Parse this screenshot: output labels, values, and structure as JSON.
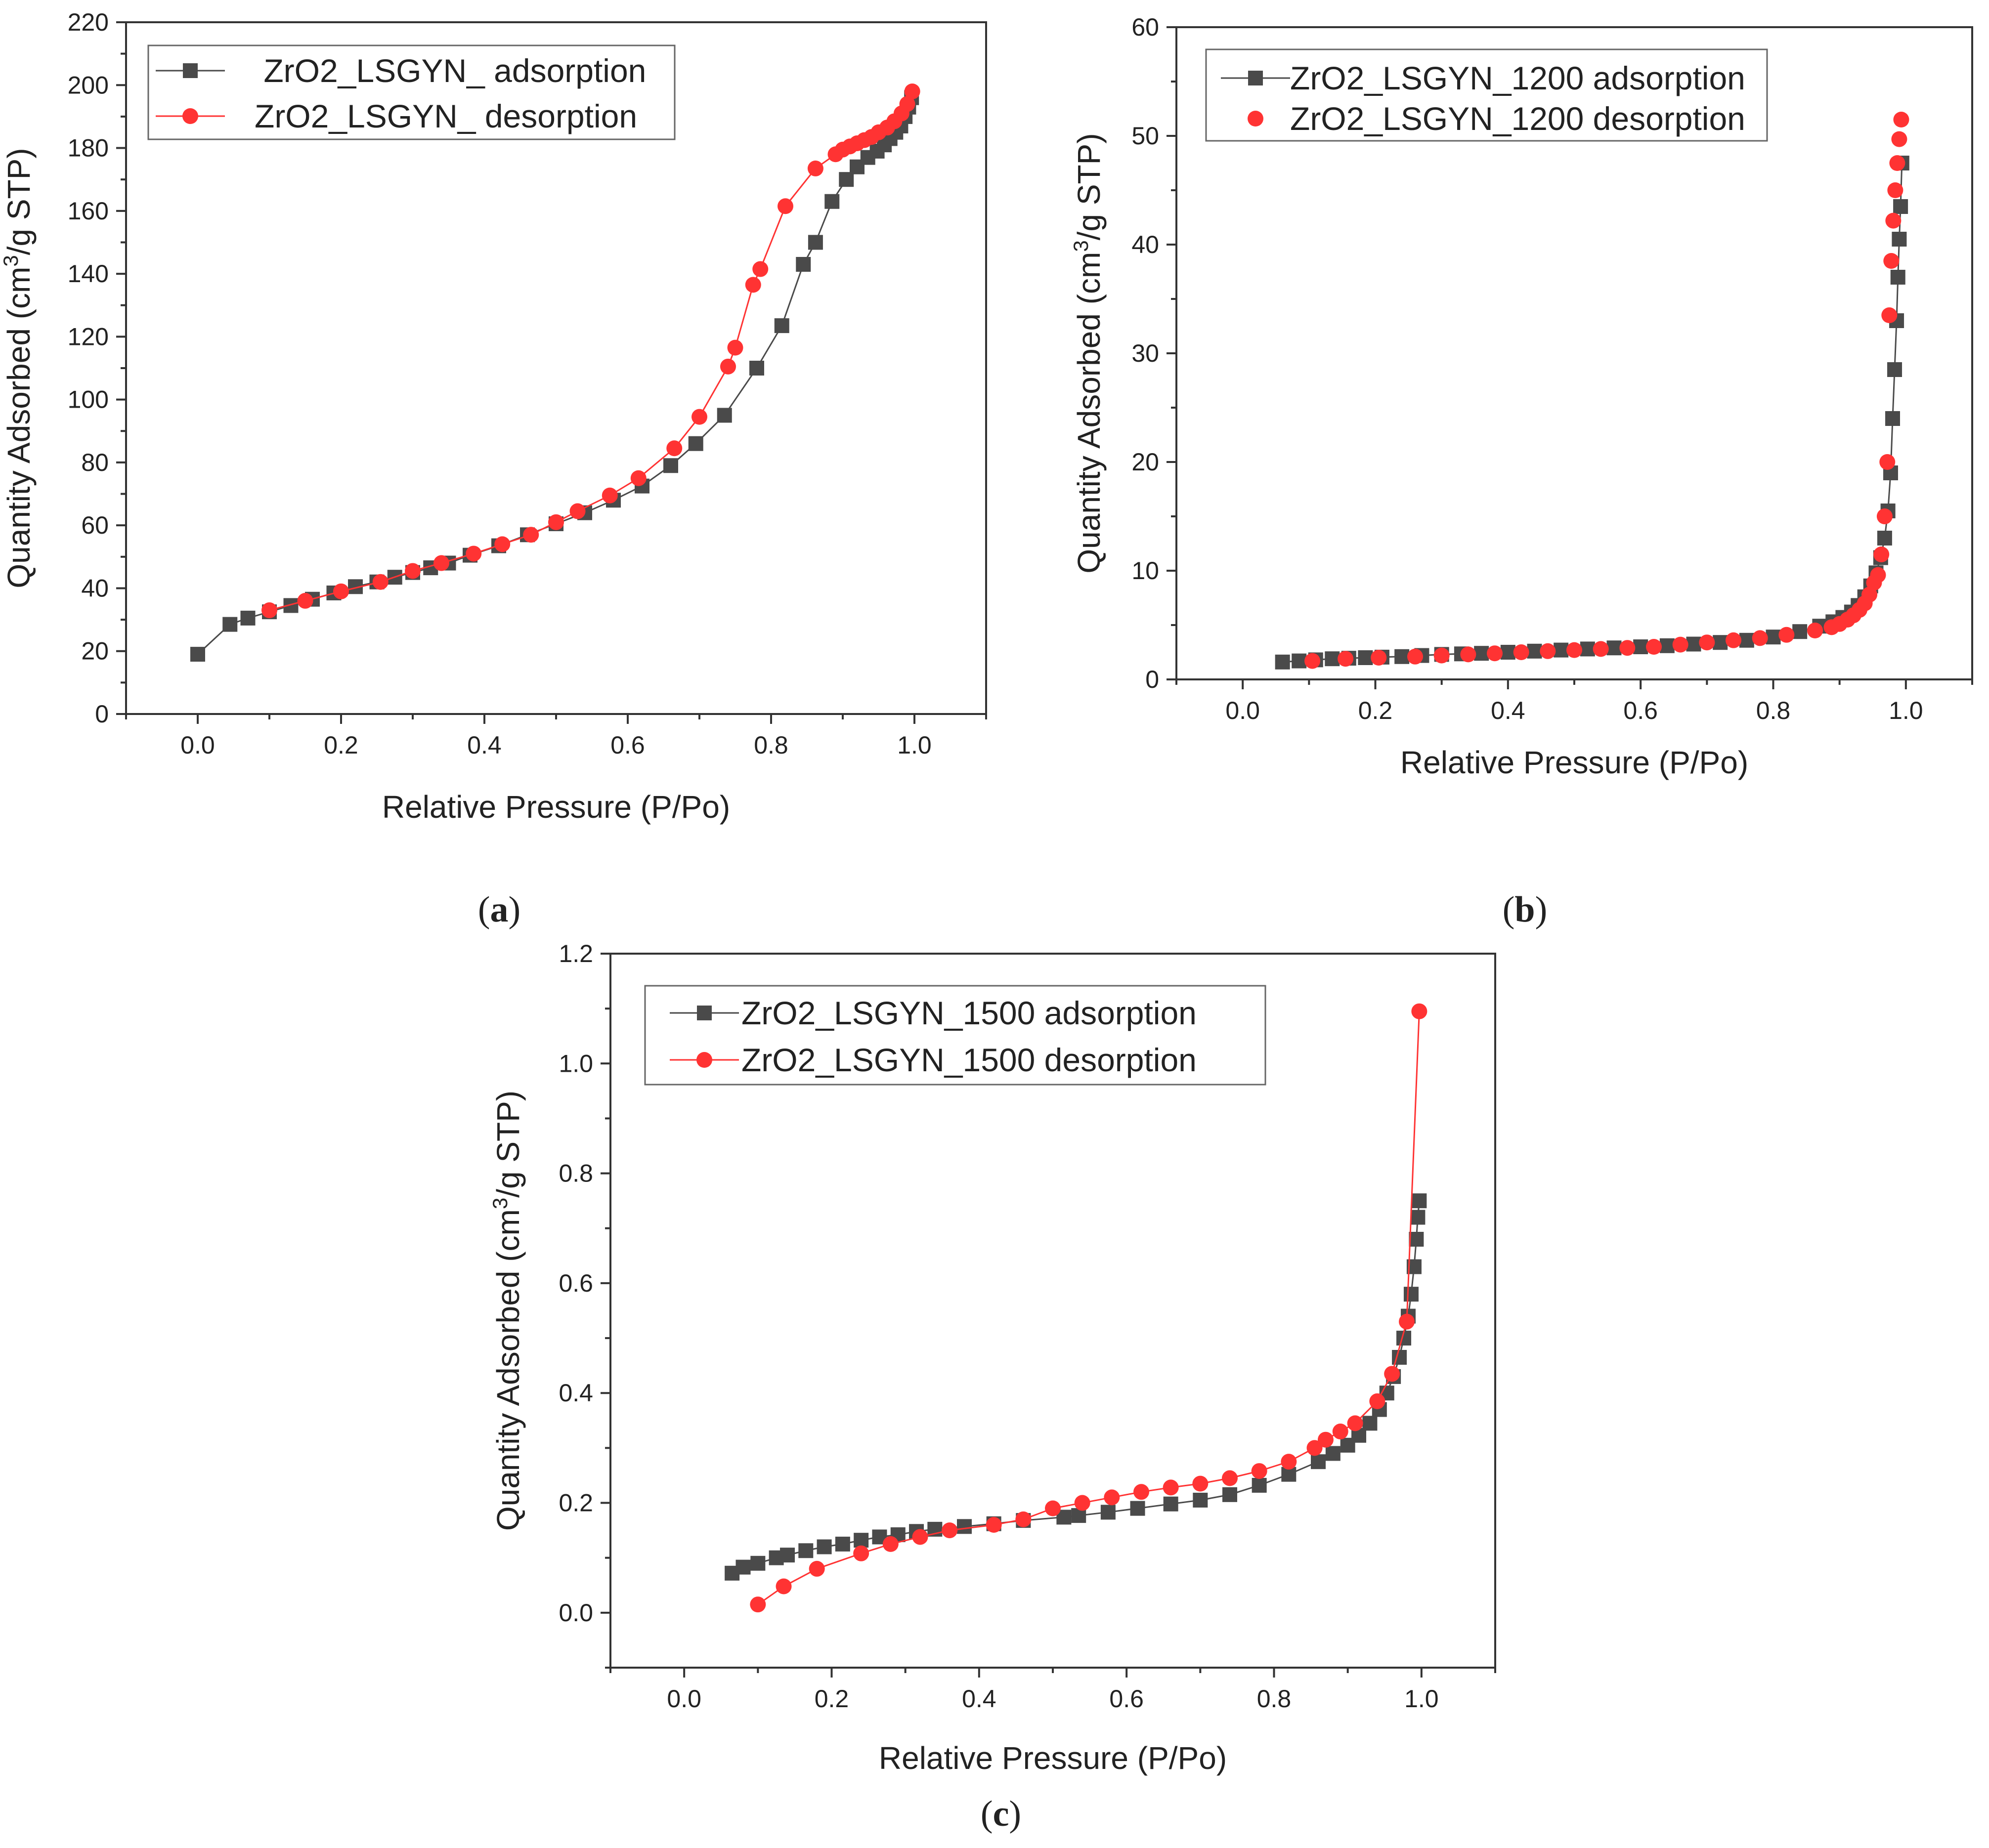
{
  "colors": {
    "adsorption": "#4a4a4a",
    "desorption": "#ff3333",
    "axis": "#333333",
    "text": "#222222"
  },
  "chart_data": [
    {
      "type": "scatter",
      "panel_label": "a",
      "xlabel": "Relative Pressure (P/Po)",
      "ylabel_main": "Quantity Adsorbed (cm",
      "ylabel_sup": "3",
      "ylabel_end": "/g STP)",
      "xlim": [
        -0.1,
        1.1
      ],
      "ylim": [
        0,
        220
      ],
      "x_ticks": [
        0.0,
        0.2,
        0.4,
        0.6,
        0.8,
        1.0
      ],
      "x_tick_labels": [
        "0.0",
        "0.2",
        "0.4",
        "0.6",
        "0.8",
        "1.0"
      ],
      "y_ticks": [
        0,
        20,
        40,
        60,
        80,
        100,
        120,
        140,
        160,
        180,
        200,
        220
      ],
      "y_tick_labels": [
        "0",
        "20",
        "40",
        "60",
        "80",
        "100",
        "120",
        "140",
        "160",
        "180",
        "200",
        "220"
      ],
      "legend_position": "top-left",
      "grid": false,
      "series": [
        {
          "name": " ZrO2_LSGYN_ adsorption",
          "marker": "square",
          "line": true,
          "x": [
            0.0,
            0.045,
            0.07,
            0.1,
            0.13,
            0.16,
            0.19,
            0.22,
            0.25,
            0.275,
            0.3,
            0.325,
            0.35,
            0.38,
            0.42,
            0.46,
            0.5,
            0.54,
            0.58,
            0.62,
            0.66,
            0.695,
            0.735,
            0.78,
            0.815,
            0.845,
            0.862,
            0.885,
            0.905,
            0.92,
            0.935,
            0.948,
            0.958,
            0.966,
            0.974,
            0.981,
            0.987,
            0.992,
            0.996
          ],
          "y": [
            19,
            28.5,
            30.5,
            32.5,
            34.5,
            36.5,
            38.5,
            40.5,
            42,
            43.5,
            45,
            46.5,
            48,
            50.5,
            53.5,
            57,
            60.5,
            64,
            68,
            72.5,
            79,
            86,
            95,
            110,
            123.5,
            143,
            150,
            163,
            170,
            174,
            177,
            179,
            181,
            183,
            185,
            187,
            190,
            193,
            196
          ]
        },
        {
          "name": "ZrO2_LSGYN_ desorption",
          "marker": "circle",
          "line": true,
          "x": [
            0.997,
            0.99,
            0.982,
            0.972,
            0.962,
            0.95,
            0.94,
            0.93,
            0.92,
            0.91,
            0.9,
            0.89,
            0.862,
            0.82,
            0.785,
            0.775,
            0.75,
            0.74,
            0.7,
            0.665,
            0.615,
            0.575,
            0.53,
            0.5,
            0.465,
            0.425,
            0.385,
            0.34,
            0.3,
            0.255,
            0.2,
            0.15,
            0.1
          ],
          "y": [
            198,
            194,
            191,
            188.5,
            186.5,
            185,
            183.5,
            182.5,
            181.5,
            180.5,
            179.5,
            178,
            173.5,
            161.5,
            141.5,
            136.5,
            116.5,
            110.5,
            94.5,
            84.5,
            75,
            69.5,
            64.5,
            61,
            57,
            54,
            51,
            48,
            45.5,
            42,
            39,
            36,
            33
          ]
        }
      ]
    },
    {
      "type": "scatter",
      "panel_label": "b",
      "xlabel": "Relative Pressure (P/Po)",
      "ylabel_main": "Quantity Adsorbed (cm",
      "ylabel_sup": "3",
      "ylabel_end": "/g STP)",
      "xlim": [
        -0.1,
        1.1
      ],
      "ylim": [
        0,
        60
      ],
      "x_ticks": [
        0.0,
        0.2,
        0.4,
        0.6,
        0.8,
        1.0
      ],
      "x_tick_labels": [
        "0.0",
        "0.2",
        "0.4",
        "0.6",
        "0.8",
        "1.0"
      ],
      "y_ticks": [
        0,
        10,
        20,
        30,
        40,
        50,
        60
      ],
      "y_tick_labels": [
        "0",
        "10",
        "20",
        "30",
        "40",
        "50",
        "60"
      ],
      "legend_position": "top-left",
      "grid": false,
      "series": [
        {
          "name": "ZrO2_LSGYN_1200 adsorption",
          "marker": "square",
          "line": true,
          "x": [
            0.06,
            0.085,
            0.11,
            0.135,
            0.16,
            0.185,
            0.21,
            0.24,
            0.27,
            0.3,
            0.33,
            0.36,
            0.4,
            0.44,
            0.48,
            0.52,
            0.56,
            0.6,
            0.64,
            0.68,
            0.72,
            0.76,
            0.8,
            0.84,
            0.87,
            0.89,
            0.905,
            0.918,
            0.928,
            0.938,
            0.947,
            0.955,
            0.962,
            0.968,
            0.973,
            0.977,
            0.98,
            0.983,
            0.986,
            0.988,
            0.99,
            0.992,
            0.994
          ],
          "y": [
            1.6,
            1.7,
            1.8,
            1.9,
            1.95,
            2.0,
            2.05,
            2.1,
            2.2,
            2.3,
            2.35,
            2.4,
            2.5,
            2.6,
            2.7,
            2.8,
            2.9,
            3.0,
            3.1,
            3.25,
            3.4,
            3.6,
            3.9,
            4.4,
            4.9,
            5.3,
            5.7,
            6.2,
            6.8,
            7.6,
            8.6,
            9.8,
            11.2,
            13.0,
            15.5,
            19.0,
            24.0,
            28.5,
            33.0,
            37.0,
            40.5,
            43.5,
            47.5
          ]
        },
        {
          "name": "ZrO2_LSGYN_1200 desorption",
          "marker": "circle",
          "line": false,
          "x": [
            0.993,
            0.99,
            0.987,
            0.984,
            0.981,
            0.978,
            0.975,
            0.972,
            0.968,
            0.963,
            0.958,
            0.952,
            0.945,
            0.938,
            0.93,
            0.921,
            0.912,
            0.9,
            0.888,
            0.863,
            0.82,
            0.78,
            0.74,
            0.7,
            0.66,
            0.62,
            0.58,
            0.54,
            0.5,
            0.46,
            0.42,
            0.38,
            0.34,
            0.3,
            0.26,
            0.205,
            0.155,
            0.105
          ],
          "y": [
            51.5,
            49.7,
            47.5,
            45.0,
            42.2,
            38.5,
            33.5,
            20.0,
            15.0,
            11.5,
            9.6,
            8.9,
            7.8,
            7.0,
            6.4,
            5.9,
            5.5,
            5.1,
            4.8,
            4.5,
            4.1,
            3.8,
            3.6,
            3.4,
            3.2,
            3.0,
            2.9,
            2.8,
            2.7,
            2.6,
            2.5,
            2.4,
            2.3,
            2.2,
            2.1,
            2.0,
            1.9,
            1.7
          ]
        }
      ]
    },
    {
      "type": "scatter",
      "panel_label": "c",
      "xlabel": "Relative Pressure (P/Po)",
      "ylabel_main": "Quantity Adsorbed (cm",
      "ylabel_sup": "3",
      "ylabel_end": "/g STP)",
      "xlim": [
        -0.1,
        1.1
      ],
      "ylim": [
        -0.1,
        1.2
      ],
      "x_ticks": [
        0.0,
        0.2,
        0.4,
        0.6,
        0.8,
        1.0
      ],
      "x_tick_labels": [
        "0.0",
        "0.2",
        "0.4",
        "0.6",
        "0.8",
        "1.0"
      ],
      "y_ticks": [
        0.0,
        0.2,
        0.4,
        0.6,
        0.8,
        1.0,
        1.2
      ],
      "y_tick_labels": [
        "0.0",
        "0.2",
        "0.4",
        "0.6",
        "0.8",
        "1.0",
        "1.2"
      ],
      "legend_position": "top-left",
      "grid": false,
      "series": [
        {
          "name": "ZrO2_LSGYN_1500 adsorption",
          "marker": "square",
          "line": true,
          "x": [
            0.065,
            0.08,
            0.1,
            0.125,
            0.14,
            0.165,
            0.19,
            0.215,
            0.24,
            0.265,
            0.29,
            0.315,
            0.34,
            0.38,
            0.42,
            0.46,
            0.515,
            0.535,
            0.575,
            0.615,
            0.66,
            0.7,
            0.74,
            0.78,
            0.82,
            0.86,
            0.88,
            0.9,
            0.915,
            0.93,
            0.943,
            0.953,
            0.962,
            0.97,
            0.976,
            0.982,
            0.986,
            0.99,
            0.993,
            0.995,
            0.997
          ],
          "y": [
            0.072,
            0.083,
            0.09,
            0.1,
            0.105,
            0.113,
            0.12,
            0.125,
            0.132,
            0.138,
            0.142,
            0.148,
            0.152,
            0.157,
            0.162,
            0.168,
            0.174,
            0.177,
            0.183,
            0.19,
            0.198,
            0.205,
            0.215,
            0.232,
            0.252,
            0.275,
            0.29,
            0.305,
            0.323,
            0.345,
            0.37,
            0.4,
            0.43,
            0.465,
            0.5,
            0.54,
            0.58,
            0.63,
            0.68,
            0.72,
            0.75
          ]
        },
        {
          "name": "ZrO2_LSGYN_1500 desorption",
          "marker": "circle",
          "line": true,
          "x": [
            0.997,
            0.98,
            0.96,
            0.94,
            0.91,
            0.89,
            0.87,
            0.855,
            0.82,
            0.78,
            0.74,
            0.7,
            0.66,
            0.62,
            0.58,
            0.54,
            0.5,
            0.46,
            0.42,
            0.36,
            0.32,
            0.28,
            0.24,
            0.18,
            0.135,
            0.1
          ],
          "y": [
            1.095,
            0.53,
            0.435,
            0.385,
            0.345,
            0.33,
            0.315,
            0.3,
            0.275,
            0.258,
            0.245,
            0.235,
            0.228,
            0.22,
            0.21,
            0.2,
            0.19,
            0.17,
            0.16,
            0.15,
            0.138,
            0.125,
            0.108,
            0.08,
            0.048,
            0.015
          ]
        }
      ]
    }
  ]
}
